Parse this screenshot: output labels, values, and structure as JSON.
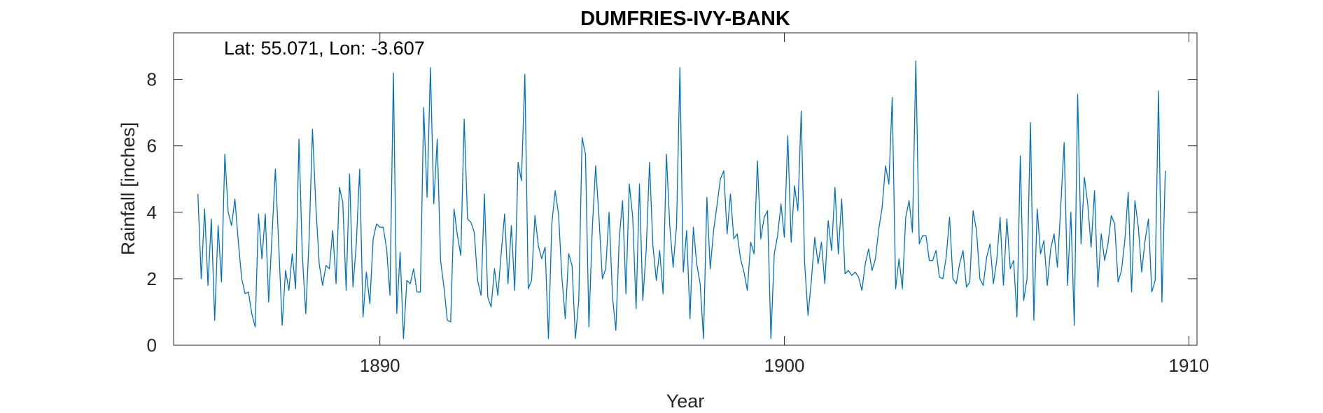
{
  "chart_data": {
    "type": "line",
    "title": "DUMFRIES-IVY-BANK",
    "xlabel": "Year",
    "ylabel": "Rainfall [inches]",
    "annotation": "Lat: 55.071, Lon: -3.607",
    "xlim": [
      1884.9,
      1910.2
    ],
    "ylim": [
      0,
      9.4
    ],
    "xticks": [
      1890,
      1900,
      1910
    ],
    "yticks": [
      0,
      2,
      4,
      6,
      8
    ],
    "grid": false,
    "line_color": "#0072bd",
    "series": [
      {
        "x_start": 1885.5,
        "x_step": 0.08333,
        "values": [
          4.55,
          2.0,
          4.1,
          1.8,
          3.8,
          0.75,
          3.6,
          1.9,
          5.75,
          4.0,
          3.6,
          4.4,
          3.1,
          2.0,
          1.55,
          1.6,
          0.95,
          0.55,
          3.95,
          2.6,
          3.95,
          1.3,
          3.3,
          5.3,
          3.0,
          0.6,
          2.25,
          1.65,
          2.75,
          1.7,
          6.2,
          2.7,
          0.95,
          3.2,
          6.5,
          4.2,
          2.45,
          1.8,
          2.4,
          2.3,
          3.45,
          1.85,
          4.75,
          4.3,
          1.65,
          5.15,
          1.75,
          3.05,
          5.3,
          0.85,
          2.2,
          1.25,
          3.2,
          3.65,
          3.55,
          3.55,
          2.9,
          1.5,
          8.2,
          0.95,
          2.8,
          0.2,
          1.95,
          1.85,
          2.3,
          1.6,
          1.6,
          7.15,
          4.45,
          8.35,
          4.25,
          6.2,
          2.55,
          1.75,
          0.75,
          0.7,
          4.1,
          3.3,
          2.7,
          6.8,
          3.8,
          3.7,
          3.4,
          1.95,
          1.5,
          4.55,
          1.45,
          1.15,
          2.3,
          1.5,
          2.8,
          3.95,
          1.85,
          3.6,
          1.65,
          5.5,
          4.95,
          8.15,
          1.7,
          1.95,
          3.9,
          3.0,
          2.6,
          2.95,
          0.2,
          3.65,
          4.65,
          3.95,
          2.05,
          0.8,
          2.75,
          2.4,
          0.2,
          1.35,
          6.25,
          5.75,
          0.55,
          3.5,
          5.4,
          3.85,
          2.0,
          2.3,
          4.0,
          1.45,
          0.45,
          3.2,
          4.35,
          1.55,
          4.85,
          3.85,
          1.1,
          4.85,
          1.35,
          2.85,
          5.5,
          3.0,
          1.95,
          2.85,
          1.55,
          5.75,
          3.6,
          2.35,
          3.6,
          8.35,
          2.2,
          3.45,
          0.8,
          3.55,
          2.45,
          1.85,
          0.2,
          4.45,
          2.3,
          3.45,
          4.2,
          5.0,
          5.25,
          3.35,
          4.55,
          3.2,
          3.35,
          2.6,
          2.2,
          1.65,
          3.1,
          2.75,
          5.55,
          3.2,
          3.85,
          4.05,
          0.2,
          2.75,
          3.3,
          4.25,
          3.25,
          6.3,
          3.1,
          4.8,
          4.05,
          7.05,
          2.5,
          0.9,
          1.95,
          3.25,
          2.45,
          3.1,
          1.85,
          3.75,
          2.85,
          4.75,
          2.75,
          4.4,
          2.15,
          2.25,
          2.1,
          2.2,
          2.05,
          1.65,
          2.45,
          2.9,
          2.25,
          2.6,
          3.5,
          4.15,
          5.4,
          4.85,
          7.45,
          1.7,
          2.6,
          1.7,
          3.85,
          4.35,
          3.4,
          8.55,
          3.05,
          3.3,
          3.3,
          2.55,
          2.55,
          2.85,
          2.05,
          2.0,
          2.65,
          3.85,
          2.0,
          1.85,
          2.45,
          2.85,
          1.75,
          1.9,
          4.05,
          3.45,
          2.0,
          1.8,
          2.65,
          3.05,
          1.85,
          2.55,
          3.85,
          1.8,
          3.8,
          2.3,
          2.55,
          0.85,
          5.7,
          1.35,
          2.0,
          6.7,
          0.75,
          4.1,
          2.75,
          3.15,
          1.8,
          2.9,
          3.35,
          2.35,
          4.2,
          6.1,
          1.8,
          4.0,
          0.6,
          7.55,
          3.05,
          5.05,
          4.25,
          2.95,
          4.65,
          1.75,
          3.35,
          2.55,
          3.05,
          3.9,
          3.65,
          1.9,
          2.25,
          3.15,
          4.6,
          1.6,
          4.35,
          3.55,
          2.2,
          3.15,
          3.8,
          1.6,
          1.95,
          7.65,
          1.3,
          5.25
        ]
      }
    ]
  }
}
